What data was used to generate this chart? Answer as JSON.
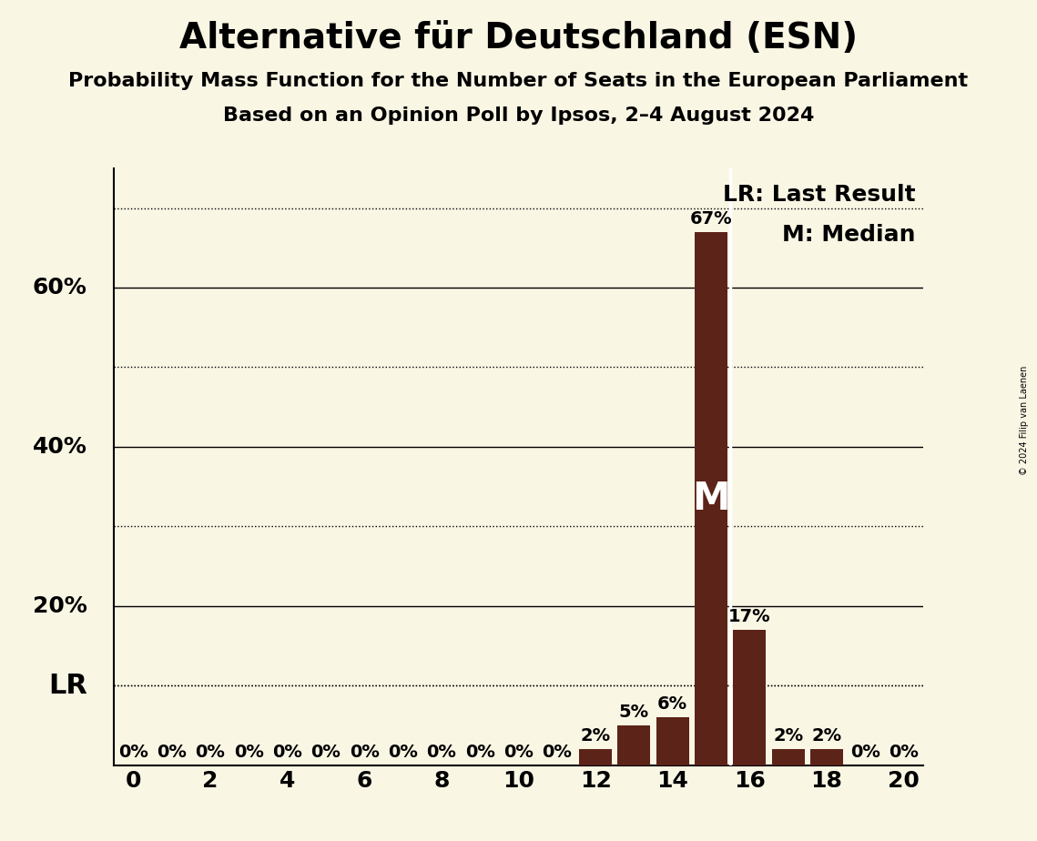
{
  "title": "Alternative für Deutschland (ESN)",
  "subtitle1": "Probability Mass Function for the Number of Seats in the European Parliament",
  "subtitle2": "Based on an Opinion Poll by Ipsos, 2–4 August 2024",
  "copyright": "© 2024 Filip van Laenen",
  "background_color": "#faf6e4",
  "bar_color": "#5c2318",
  "seats": [
    0,
    1,
    2,
    3,
    4,
    5,
    6,
    7,
    8,
    9,
    10,
    11,
    12,
    13,
    14,
    15,
    16,
    17,
    18,
    19,
    20
  ],
  "probabilities": [
    0,
    0,
    0,
    0,
    0,
    0,
    0,
    0,
    0,
    0,
    0,
    0,
    2,
    5,
    6,
    67,
    17,
    2,
    2,
    0,
    0
  ],
  "median_seat": 15,
  "lr_seat": 15,
  "lr_level": 10,
  "ylim": [
    0,
    75
  ],
  "xlim": [
    -0.5,
    20.5
  ],
  "xticks": [
    0,
    2,
    4,
    6,
    8,
    10,
    12,
    14,
    16,
    18,
    20
  ],
  "ytick_labels_shown": [
    20,
    40,
    60
  ],
  "solid_yticks": [
    20,
    40,
    60
  ],
  "dotted_yticks": [
    10,
    30,
    50,
    70
  ],
  "title_fontsize": 28,
  "subtitle_fontsize": 16,
  "tick_fontsize": 18,
  "bar_label_fontsize": 14,
  "lr_label": "LR",
  "median_label": "M",
  "legend_lr": "LR: Last Result",
  "legend_m": "M: Median",
  "legend_fontsize": 18,
  "lr_fontsize": 22,
  "median_fontsize": 30
}
